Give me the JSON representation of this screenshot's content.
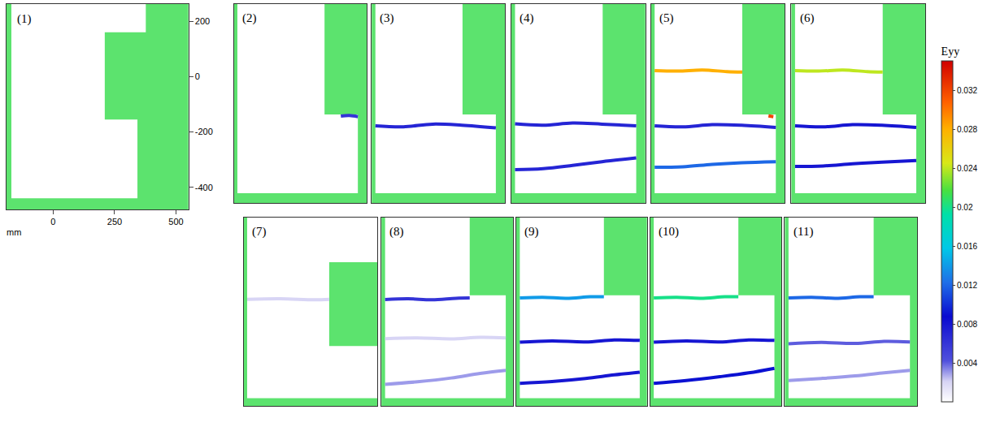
{
  "chart_data": {
    "type": "strain_map",
    "x_label": "mm",
    "colorbar": {
      "title": "Eyy",
      "range": [
        0,
        0.035
      ],
      "ticks": [
        0.004,
        0.008,
        0.012,
        0.016,
        0.02,
        0.024,
        0.028,
        0.032
      ]
    },
    "panels": [
      {
        "label": "(1)",
        "xlim": [
          -190,
          550
        ],
        "ylim": [
          -480,
          262
        ],
        "xticks": [
          0,
          250,
          500
        ],
        "yticks": [
          -400,
          -200,
          0,
          200
        ],
        "outline": {
          "x": [
            -170,
            377,
            377,
            210,
            210,
            343,
            343,
            -170
          ],
          "y": [
            262,
            262,
            160,
            160,
            -155,
            -155,
            -440,
            -440
          ]
        },
        "cracks": []
      },
      {
        "label": "(2)",
        "xlim": [
          -190,
          357
        ],
        "ylim": [
          -480,
          262
        ],
        "outline": {
          "x": [
            -175,
            183,
            183,
            320,
            320,
            -175
          ],
          "y": [
            262,
            262,
            -150,
            -150,
            -444,
            -444
          ]
        },
        "cracks": [
          {
            "x": [
              250,
              285,
              320
            ],
            "y": [
              -156,
              -154,
              -158
            ],
            "strain": 0.006
          }
        ]
      },
      {
        "label": "(3)",
        "xlim": [
          -190,
          357
        ],
        "ylim": [
          -480,
          262
        ],
        "outline": {
          "x": [
            -175,
            183,
            183,
            320,
            320,
            -175
          ],
          "y": [
            262,
            262,
            -150,
            -150,
            -444,
            -444
          ]
        },
        "cracks": [
          {
            "x": [
              -175,
              -60,
              60,
              180,
              320
            ],
            "y": [
              -192,
              -196,
              -186,
              -190,
              -200
            ],
            "strain": 0.007
          }
        ]
      },
      {
        "label": "(4)",
        "xlim": [
          -190,
          357
        ],
        "ylim": [
          -480,
          262
        ],
        "outline": {
          "x": [
            -175,
            183,
            183,
            320,
            320,
            -175
          ],
          "y": [
            262,
            262,
            -150,
            -150,
            -444,
            -444
          ]
        },
        "cracks": [
          {
            "x": [
              -175,
              -60,
              60,
              180,
              320
            ],
            "y": [
              -185,
              -190,
              -182,
              -186,
              -192
            ],
            "strain": 0.007
          },
          {
            "x": [
              -175,
              -60,
              60,
              180,
              320
            ],
            "y": [
              -356,
              -352,
              -340,
              -326,
              -312
            ],
            "strain": 0.007
          }
        ]
      },
      {
        "label": "(5)",
        "xlim": [
          -190,
          357
        ],
        "ylim": [
          -480,
          262
        ],
        "outline": {
          "x": [
            -175,
            183,
            183,
            320,
            320,
            -175
          ],
          "y": [
            262,
            262,
            -150,
            -150,
            -444,
            -444
          ]
        },
        "cracks": [
          {
            "x": [
              -175,
              -80,
              20,
              120,
              183
            ],
            "y": [
              14,
              12,
              16,
              10,
              8
            ],
            "strain": 0.028
          },
          {
            "x": [
              -175,
              -60,
              60,
              180,
              320
            ],
            "y": [
              -192,
              -196,
              -188,
              -190,
              -198
            ],
            "strain": 0.007
          },
          {
            "x": [
              -175,
              -60,
              60,
              180,
              320
            ],
            "y": [
              -347,
              -345,
              -336,
              -330,
              -326
            ],
            "strain": 0.012
          },
          {
            "x": [
              290,
              310
            ],
            "y": [
              -155,
              -158
            ],
            "strain": 0.032
          }
        ]
      },
      {
        "label": "(6)",
        "xlim": [
          -190,
          357
        ],
        "ylim": [
          -480,
          262
        ],
        "outline": {
          "x": [
            -175,
            183,
            183,
            320,
            320,
            -175
          ],
          "y": [
            262,
            262,
            -150,
            -150,
            -444,
            -444
          ]
        },
        "cracks": [
          {
            "x": [
              -175,
              -80,
              20,
              120,
              183
            ],
            "y": [
              14,
              12,
              16,
              10,
              8
            ],
            "strain": 0.024
          },
          {
            "x": [
              -175,
              -60,
              60,
              180,
              320
            ],
            "y": [
              -192,
              -196,
              -188,
              -190,
              -198
            ],
            "strain": 0.008
          },
          {
            "x": [
              -175,
              -60,
              60,
              180,
              320
            ],
            "y": [
              -344,
              -342,
              -334,
              -328,
              -322
            ],
            "strain": 0.008
          }
        ]
      },
      {
        "label": "(7)",
        "xlim": [
          -190,
          357
        ],
        "ylim": [
          -480,
          262
        ],
        "outline": {
          "x": [
            -175,
            357,
            357,
            160,
            160,
            357,
            357,
            -175
          ],
          "y": [
            262,
            262,
            86,
            86,
            -244,
            -244,
            -450,
            -450
          ]
        },
        "cracks": [
          {
            "x": [
              -175,
              -40,
              100,
              160
            ],
            "y": [
              -60,
              -58,
              -62,
              -60
            ],
            "strain": 0.002
          }
        ]
      },
      {
        "label": "(8)",
        "xlim": [
          -190,
          357
        ],
        "ylim": [
          -480,
          262
        ],
        "outline": {
          "x": [
            -175,
            177,
            177,
            327,
            327,
            -175
          ],
          "y": [
            262,
            262,
            -44,
            -44,
            -450,
            -450
          ]
        },
        "cracks": [
          {
            "x": [
              -175,
              -80,
              20,
              120,
              177
            ],
            "y": [
              -61,
              -58,
              -62,
              -56,
              -55
            ],
            "strain": 0.006
          },
          {
            "x": [
              -175,
              -40,
              100,
              220,
              327
            ],
            "y": [
              -215,
              -212,
              -216,
              -210,
              -212
            ],
            "strain": 0.002
          },
          {
            "x": [
              -175,
              -40,
              100,
              220,
              327
            ],
            "y": [
              -395,
              -385,
              -370,
              -352,
              -340
            ],
            "strain": 0.003
          }
        ]
      },
      {
        "label": "(9)",
        "xlim": [
          -190,
          357
        ],
        "ylim": [
          -480,
          262
        ],
        "outline": {
          "x": [
            -175,
            177,
            177,
            327,
            327,
            -175
          ],
          "y": [
            262,
            262,
            -44,
            -44,
            -450,
            -450
          ]
        },
        "cracks": [
          {
            "x": [
              -175,
              -80,
              20,
              120,
              177
            ],
            "y": [
              -55,
              -52,
              -56,
              -50,
              -50
            ],
            "strain": 0.014
          },
          {
            "x": [
              -175,
              -40,
              100,
              220,
              327
            ],
            "y": [
              -229,
              -224,
              -228,
              -220,
              -222
            ],
            "strain": 0.008
          },
          {
            "x": [
              -175,
              -40,
              100,
              220,
              327
            ],
            "y": [
              -391,
              -384,
              -372,
              -358,
              -347
            ],
            "strain": 0.008
          }
        ]
      },
      {
        "label": "(10)",
        "xlim": [
          -190,
          357
        ],
        "ylim": [
          -480,
          262
        ],
        "outline": {
          "x": [
            -175,
            177,
            177,
            327,
            327,
            -175
          ],
          "y": [
            262,
            262,
            -44,
            -44,
            -450,
            -450
          ]
        },
        "cracks": [
          {
            "x": [
              -175,
              -80,
              20,
              120,
              177
            ],
            "y": [
              -55,
              -52,
              -56,
              -50,
              -50
            ],
            "strain": 0.02
          },
          {
            "x": [
              -175,
              -40,
              100,
              220,
              327
            ],
            "y": [
              -229,
              -224,
              -228,
              -220,
              -222
            ],
            "strain": 0.008
          },
          {
            "x": [
              -175,
              -40,
              100,
              220,
              327
            ],
            "y": [
              -391,
              -380,
              -365,
              -350,
              -332
            ],
            "strain": 0.009
          }
        ]
      },
      {
        "label": "(11)",
        "xlim": [
          -190,
          357
        ],
        "ylim": [
          -480,
          262
        ],
        "outline": {
          "x": [
            -175,
            177,
            177,
            327,
            327,
            -175
          ],
          "y": [
            262,
            262,
            -44,
            -44,
            -450,
            -450
          ]
        },
        "cracks": [
          {
            "x": [
              -175,
              -80,
              20,
              120,
              177
            ],
            "y": [
              -55,
              -52,
              -56,
              -50,
              -50
            ],
            "strain": 0.012
          },
          {
            "x": [
              -175,
              -40,
              100,
              220,
              327
            ],
            "y": [
              -235,
              -230,
              -234,
              -226,
              -228
            ],
            "strain": 0.004
          },
          {
            "x": [
              -175,
              -40,
              100,
              220,
              327
            ],
            "y": [
              -380,
              -372,
              -362,
              -350,
              -340
            ],
            "strain": 0.003
          }
        ]
      }
    ]
  }
}
